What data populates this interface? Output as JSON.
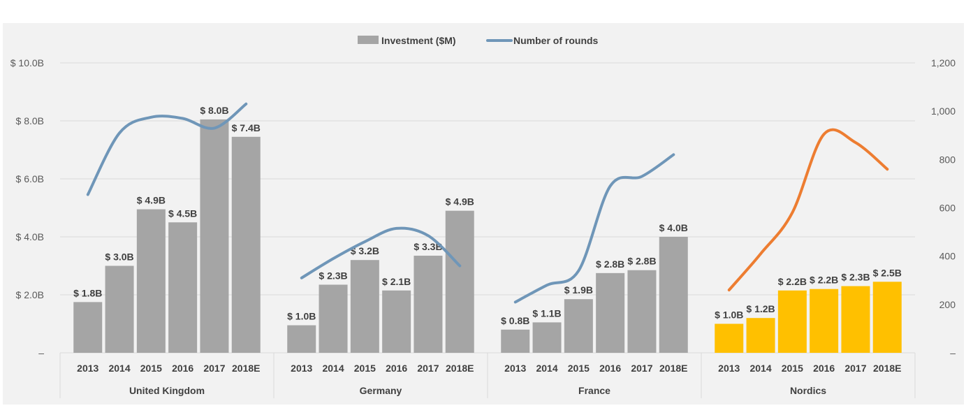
{
  "chart_data": {
    "type": "bar",
    "colors": {
      "bar": "#A5A5A5",
      "bar_highlight": "#FFC000",
      "line": "#6F96B8",
      "line_highlight": "#ED7D31",
      "grid": "#D9D9D9",
      "background": "#F2F2F2"
    },
    "legend": {
      "position": "top",
      "bar_label": "Investment ($M)",
      "line_label": "Number of rounds"
    },
    "y_left": {
      "range": [
        0,
        10
      ],
      "ticks": [
        0,
        2,
        4,
        6,
        8,
        10
      ],
      "tick_labels": [
        "–",
        "$ 2.0B",
        "$ 4.0B",
        "$ 6.0B",
        "$ 8.0B",
        "$ 10.0B"
      ]
    },
    "y_right": {
      "range": [
        0,
        1200
      ],
      "ticks": [
        0,
        200,
        400,
        600,
        800,
        1000,
        1200
      ],
      "tick_labels": [
        "–",
        "200",
        "400",
        "600",
        "800",
        "1,000",
        "1,200"
      ]
    },
    "grid": true,
    "groups": [
      {
        "name": "United Kingdom",
        "highlight": false,
        "years": [
          "2013",
          "2014",
          "2015",
          "2016",
          "2017",
          "2018E"
        ],
        "investment": [
          1.75,
          3.0,
          4.95,
          4.5,
          8.05,
          7.45
        ],
        "investment_labels": [
          "$ 1.8B",
          "$ 3.0B",
          "$ 4.9B",
          "$ 4.5B",
          "$ 8.0B",
          "$ 7.4B"
        ],
        "rounds": [
          655,
          910,
          975,
          970,
          930,
          1030
        ]
      },
      {
        "name": "Germany",
        "highlight": false,
        "years": [
          "2013",
          "2014",
          "2015",
          "2016",
          "2017",
          "2018E"
        ],
        "investment": [
          0.95,
          2.35,
          3.2,
          2.15,
          3.35,
          4.9
        ],
        "investment_labels": [
          "$ 1.0B",
          "$ 2.3B",
          "$ 3.2B",
          "$ 2.1B",
          "$ 3.3B",
          "$ 4.9B"
        ],
        "rounds": [
          310,
          390,
          460,
          515,
          485,
          360
        ]
      },
      {
        "name": "France",
        "highlight": false,
        "years": [
          "2013",
          "2014",
          "2015",
          "2016",
          "2017",
          "2018E"
        ],
        "investment": [
          0.8,
          1.05,
          1.85,
          2.75,
          2.85,
          4.0
        ],
        "investment_labels": [
          "$ 0.8B",
          "$ 1.1B",
          "$ 1.9B",
          "$ 2.8B",
          "$ 2.8B",
          "$ 4.0B"
        ],
        "rounds": [
          210,
          280,
          340,
          690,
          730,
          820
        ]
      },
      {
        "name": "Nordics",
        "highlight": true,
        "years": [
          "2013",
          "2014",
          "2015",
          "2016",
          "2017",
          "2018E"
        ],
        "investment": [
          1.0,
          1.2,
          2.15,
          2.2,
          2.3,
          2.45
        ],
        "investment_labels": [
          "$ 1.0B",
          "$ 1.2B",
          "$ 2.2B",
          "$ 2.2B",
          "$ 2.3B",
          "$ 2.5B"
        ],
        "rounds": [
          260,
          410,
          580,
          905,
          870,
          760
        ]
      }
    ]
  }
}
